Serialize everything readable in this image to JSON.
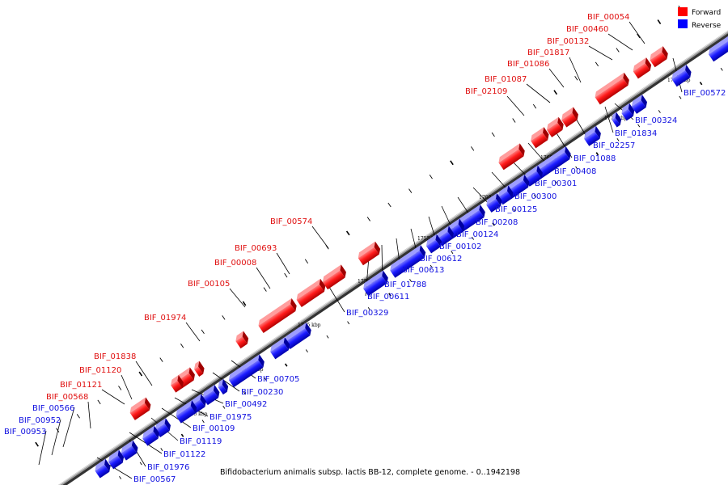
{
  "caption": "Bifidobacterium animalis subsp. lactis BB-12, complete genome. - 0..1942198",
  "legend": {
    "forward_label": "Forward",
    "reverse_label": "Reverse",
    "forward_color": "#ff0000",
    "reverse_color": "#0000ff"
  },
  "axis": {
    "tick_labels": [
      "1735 kbp",
      "1740 kbp",
      "1745 kbp",
      "1750 kbp",
      "1755 kbp",
      "1760 kbp",
      "1765 kbp",
      "1770 kbp",
      "1775 kbp"
    ]
  },
  "genes": {
    "forward": [
      "BIF_00054",
      "BIF_00460",
      "BIF_00132",
      "BIF_01817",
      "BIF_01086",
      "BIF_01087",
      "BIF_02109",
      "BIF_00574",
      "BIF_00693",
      "BIF_00008",
      "BIF_00105",
      "BIF_01974",
      "BIF_01838",
      "BIF_01120",
      "BIF_01121",
      "BIF_00568"
    ],
    "reverse": [
      "BIF_00572",
      "BIF_00324",
      "BIF_01834",
      "BIF_02257",
      "BIF_01088",
      "BIF_00408",
      "BIF_00301",
      "BIF_00300",
      "BIF_00125",
      "BIF_00208",
      "BIF_00124",
      "BIF_00102",
      "BIF_00612",
      "BIF_00613",
      "BIF_01788",
      "BIF_00611",
      "BIF_00329",
      "BIF_00705",
      "BIF_00230",
      "BIF_00492",
      "BIF_01975",
      "BIF_00109",
      "BIF_01119",
      "BIF_01122",
      "BIF_01976",
      "BIF_00567",
      "BIF_00566",
      "BIF_00952",
      "BIF_00953"
    ]
  }
}
